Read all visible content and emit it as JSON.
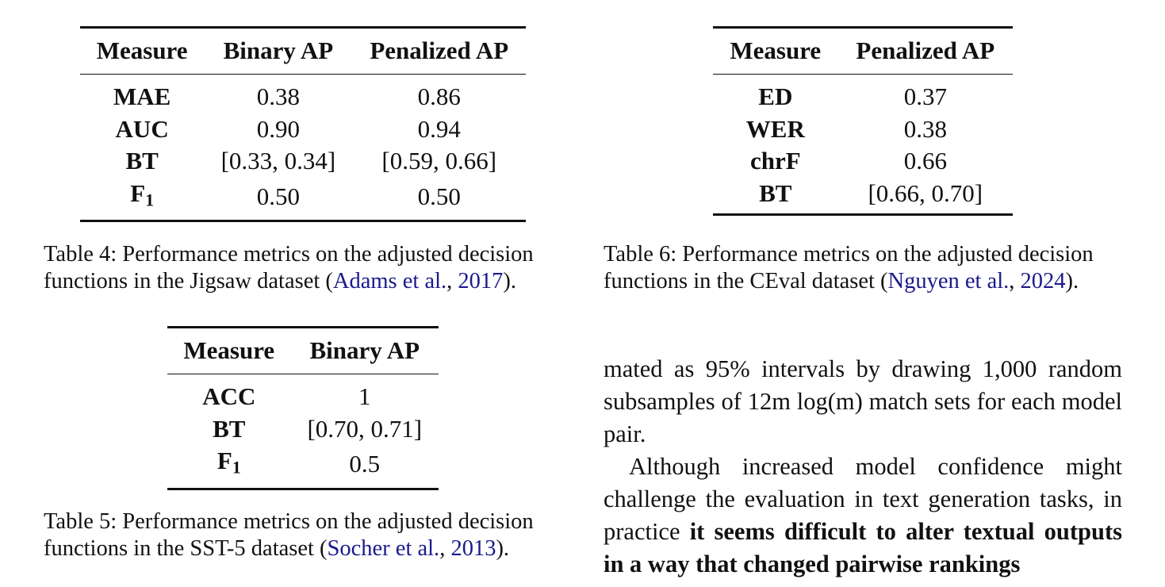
{
  "table4": {
    "headers": [
      "Measure",
      "Binary AP",
      "Penalized AP"
    ],
    "rows": [
      [
        "MAE",
        "0.38",
        "0.86"
      ],
      [
        "AUC",
        "0.90",
        "0.94"
      ],
      [
        "BT",
        "[0.33, 0.34]",
        "[0.59, 0.66]"
      ],
      [
        "F",
        "0.50",
        "0.50"
      ]
    ],
    "f1_sub": "1",
    "caption_prefix": "Table 4: Performance metrics on the adjusted decision functions in the Jigsaw dataset (",
    "cite_authors": "Adams et al.",
    "cite_sep": ", ",
    "cite_year": "2017",
    "caption_suffix": ")."
  },
  "table5": {
    "headers": [
      "Measure",
      "Binary AP"
    ],
    "rows": [
      [
        "ACC",
        "1"
      ],
      [
        "BT",
        "[0.70, 0.71]"
      ],
      [
        "F",
        "0.5"
      ]
    ],
    "f1_sub": "1",
    "caption_prefix": "Table 5: Performance metrics on the adjusted decision functions in the SST-5 dataset (",
    "cite_authors": "Socher et al.",
    "cite_sep": ", ",
    "cite_year": "2013",
    "caption_suffix": ")."
  },
  "table6": {
    "headers": [
      "Measure",
      "Penalized AP"
    ],
    "rows": [
      [
        "ED",
        "0.37"
      ],
      [
        "WER",
        "0.38"
      ],
      [
        "chrF",
        "0.66"
      ],
      [
        "BT",
        "[0.66, 0.70]"
      ]
    ],
    "caption_prefix": "Table 6: Performance metrics on the adjusted decision functions in the CEval dataset (",
    "cite_authors": "Nguyen et al.",
    "cite_sep": ", ",
    "cite_year": "2024",
    "caption_suffix": ")."
  },
  "body": {
    "para1": "mated as 95% intervals by drawing 1,000 random subsamples of 12m log(m) match sets for each model pair.",
    "para2_plain": "Although increased model confidence might challenge the evaluation in text generation tasks, in practice ",
    "para2_bold": "it seems difficult to alter textual outputs in a way that changed pairwise rankings"
  }
}
